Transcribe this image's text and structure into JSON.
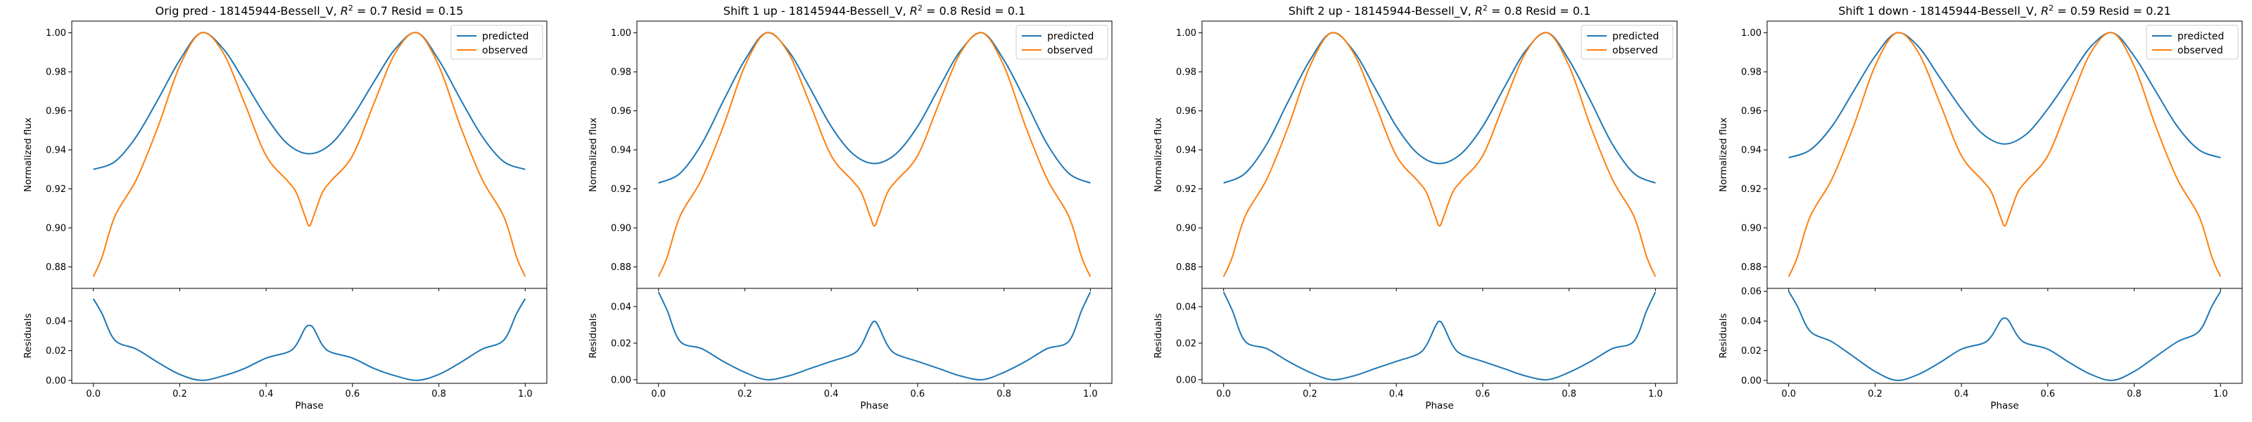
{
  "figure": {
    "xlabel": "Phase",
    "ylabel_top": "Normalized flux",
    "ylabel_bottom": "Residuals",
    "series_names": [
      "predicted",
      "observed"
    ],
    "colors": {
      "predicted": "#1f77b4",
      "observed": "#ff7f0e",
      "residual": "#1f77b4"
    }
  },
  "chart_data": [
    {
      "type": "line",
      "title_prefix": "Orig pred - 18145944-Bessell_V, ",
      "title_r2": "= 0.7",
      "title_resid": " Resid = 0.15",
      "x_ticks": [
        "0.0",
        "0.2",
        "0.4",
        "0.6",
        "0.8",
        "1.0"
      ],
      "flux_ticks": [
        "0.88",
        "0.90",
        "0.92",
        "0.94",
        "0.96",
        "0.98",
        "1.00"
      ],
      "resid_ticks": [
        "0.00",
        "0.02",
        "0.04"
      ],
      "xlim": [
        -0.05,
        1.05
      ],
      "flux_ylim": [
        0.869,
        1.006
      ],
      "resid_ylim": [
        -0.002,
        0.062
      ],
      "series": [
        {
          "name": "predicted",
          "x": [
            0.0,
            0.05,
            0.1,
            0.15,
            0.2,
            0.25,
            0.3,
            0.35,
            0.4,
            0.45,
            0.5,
            0.55,
            0.6,
            0.65,
            0.7,
            0.75,
            0.8,
            0.85,
            0.9,
            0.95,
            1.0
          ],
          "y": [
            0.93,
            0.934,
            0.947,
            0.966,
            0.986,
            1.0,
            0.992,
            0.975,
            0.957,
            0.943,
            0.938,
            0.943,
            0.957,
            0.975,
            0.992,
            1.0,
            0.986,
            0.966,
            0.947,
            0.934,
            0.93
          ]
        },
        {
          "name": "observed",
          "x": [
            0.0,
            0.02,
            0.05,
            0.1,
            0.15,
            0.2,
            0.25,
            0.3,
            0.35,
            0.4,
            0.45,
            0.47,
            0.49,
            0.5,
            0.51,
            0.53,
            0.55,
            0.6,
            0.65,
            0.7,
            0.75,
            0.8,
            0.85,
            0.9,
            0.95,
            0.98,
            1.0
          ],
          "y": [
            0.875,
            0.885,
            0.906,
            0.925,
            0.952,
            0.983,
            1.0,
            0.99,
            0.964,
            0.937,
            0.924,
            0.918,
            0.906,
            0.901,
            0.906,
            0.918,
            0.924,
            0.937,
            0.964,
            0.99,
            1.0,
            0.983,
            0.952,
            0.925,
            0.906,
            0.885,
            0.875
          ]
        }
      ],
      "residuals": {
        "x": [
          0.0,
          0.02,
          0.05,
          0.1,
          0.15,
          0.2,
          0.25,
          0.3,
          0.35,
          0.4,
          0.45,
          0.47,
          0.49,
          0.5,
          0.51,
          0.53,
          0.55,
          0.6,
          0.65,
          0.7,
          0.75,
          0.8,
          0.85,
          0.9,
          0.95,
          0.98,
          1.0
        ],
        "y": [
          0.055,
          0.045,
          0.027,
          0.021,
          0.012,
          0.004,
          0.0,
          0.003,
          0.008,
          0.015,
          0.019,
          0.024,
          0.035,
          0.037,
          0.035,
          0.024,
          0.019,
          0.015,
          0.008,
          0.003,
          0.0,
          0.004,
          0.012,
          0.021,
          0.027,
          0.045,
          0.055
        ]
      }
    },
    {
      "type": "line",
      "title_prefix": "Shift 1 up - 18145944-Bessell_V, ",
      "title_r2": "= 0.8",
      "title_resid": " Resid = 0.1",
      "x_ticks": [
        "0.0",
        "0.2",
        "0.4",
        "0.6",
        "0.8",
        "1.0"
      ],
      "flux_ticks": [
        "0.88",
        "0.90",
        "0.92",
        "0.94",
        "0.96",
        "0.98",
        "1.00"
      ],
      "resid_ticks": [
        "0.00",
        "0.02",
        "0.04"
      ],
      "xlim": [
        -0.05,
        1.05
      ],
      "flux_ylim": [
        0.869,
        1.006
      ],
      "resid_ylim": [
        -0.002,
        0.05
      ],
      "series": [
        {
          "name": "predicted",
          "x": [
            0.0,
            0.05,
            0.1,
            0.15,
            0.2,
            0.25,
            0.3,
            0.35,
            0.4,
            0.45,
            0.5,
            0.55,
            0.6,
            0.65,
            0.7,
            0.75,
            0.8,
            0.85,
            0.9,
            0.95,
            1.0
          ],
          "y": [
            0.923,
            0.928,
            0.943,
            0.965,
            0.986,
            1.0,
            0.991,
            0.972,
            0.952,
            0.938,
            0.933,
            0.938,
            0.952,
            0.972,
            0.991,
            1.0,
            0.986,
            0.965,
            0.943,
            0.928,
            0.923
          ]
        },
        {
          "name": "observed",
          "x": [
            0.0,
            0.02,
            0.05,
            0.1,
            0.15,
            0.2,
            0.25,
            0.3,
            0.35,
            0.4,
            0.45,
            0.47,
            0.49,
            0.5,
            0.51,
            0.53,
            0.55,
            0.6,
            0.65,
            0.7,
            0.75,
            0.8,
            0.85,
            0.9,
            0.95,
            0.98,
            1.0
          ],
          "y": [
            0.875,
            0.885,
            0.906,
            0.925,
            0.952,
            0.983,
            1.0,
            0.99,
            0.964,
            0.937,
            0.924,
            0.918,
            0.906,
            0.901,
            0.906,
            0.918,
            0.924,
            0.937,
            0.964,
            0.99,
            1.0,
            0.983,
            0.952,
            0.925,
            0.906,
            0.885,
            0.875
          ]
        }
      ],
      "residuals": {
        "x": [
          0.0,
          0.02,
          0.05,
          0.1,
          0.15,
          0.2,
          0.25,
          0.3,
          0.35,
          0.4,
          0.45,
          0.47,
          0.49,
          0.5,
          0.51,
          0.53,
          0.55,
          0.6,
          0.65,
          0.7,
          0.75,
          0.8,
          0.85,
          0.9,
          0.95,
          0.98,
          1.0
        ],
        "y": [
          0.048,
          0.038,
          0.021,
          0.017,
          0.01,
          0.004,
          0.0,
          0.002,
          0.006,
          0.01,
          0.014,
          0.019,
          0.029,
          0.032,
          0.029,
          0.019,
          0.014,
          0.01,
          0.006,
          0.002,
          0.0,
          0.004,
          0.01,
          0.017,
          0.021,
          0.038,
          0.048
        ]
      }
    },
    {
      "type": "line",
      "title_prefix": "Shift 2 up - 18145944-Bessell_V, ",
      "title_r2": "= 0.8",
      "title_resid": " Resid = 0.1",
      "x_ticks": [
        "0.0",
        "0.2",
        "0.4",
        "0.6",
        "0.8",
        "1.0"
      ],
      "flux_ticks": [
        "0.88",
        "0.90",
        "0.92",
        "0.94",
        "0.96",
        "0.98",
        "1.00"
      ],
      "resid_ticks": [
        "0.00",
        "0.02",
        "0.04"
      ],
      "xlim": [
        -0.05,
        1.05
      ],
      "flux_ylim": [
        0.869,
        1.006
      ],
      "resid_ylim": [
        -0.002,
        0.05
      ],
      "series": [
        {
          "name": "predicted",
          "x": [
            0.0,
            0.05,
            0.1,
            0.15,
            0.2,
            0.25,
            0.3,
            0.35,
            0.4,
            0.45,
            0.5,
            0.55,
            0.6,
            0.65,
            0.7,
            0.75,
            0.8,
            0.85,
            0.9,
            0.95,
            1.0
          ],
          "y": [
            0.923,
            0.928,
            0.943,
            0.965,
            0.986,
            1.0,
            0.991,
            0.972,
            0.952,
            0.938,
            0.933,
            0.938,
            0.952,
            0.972,
            0.991,
            1.0,
            0.986,
            0.965,
            0.943,
            0.928,
            0.923
          ]
        },
        {
          "name": "observed",
          "x": [
            0.0,
            0.02,
            0.05,
            0.1,
            0.15,
            0.2,
            0.25,
            0.3,
            0.35,
            0.4,
            0.45,
            0.47,
            0.49,
            0.5,
            0.51,
            0.53,
            0.55,
            0.6,
            0.65,
            0.7,
            0.75,
            0.8,
            0.85,
            0.9,
            0.95,
            0.98,
            1.0
          ],
          "y": [
            0.875,
            0.885,
            0.906,
            0.925,
            0.952,
            0.983,
            1.0,
            0.99,
            0.964,
            0.937,
            0.924,
            0.918,
            0.906,
            0.901,
            0.906,
            0.918,
            0.924,
            0.937,
            0.964,
            0.99,
            1.0,
            0.983,
            0.952,
            0.925,
            0.906,
            0.885,
            0.875
          ]
        }
      ],
      "residuals": {
        "x": [
          0.0,
          0.02,
          0.05,
          0.1,
          0.15,
          0.2,
          0.25,
          0.3,
          0.35,
          0.4,
          0.45,
          0.47,
          0.49,
          0.5,
          0.51,
          0.53,
          0.55,
          0.6,
          0.65,
          0.7,
          0.75,
          0.8,
          0.85,
          0.9,
          0.95,
          0.98,
          1.0
        ],
        "y": [
          0.048,
          0.038,
          0.021,
          0.017,
          0.01,
          0.004,
          0.0,
          0.002,
          0.006,
          0.01,
          0.014,
          0.019,
          0.029,
          0.032,
          0.029,
          0.019,
          0.014,
          0.01,
          0.006,
          0.002,
          0.0,
          0.004,
          0.01,
          0.017,
          0.021,
          0.038,
          0.048
        ]
      }
    },
    {
      "type": "line",
      "title_prefix": "Shift 1 down - 18145944-Bessell_V, ",
      "title_r2": "= 0.59",
      "title_resid": " Resid = 0.21",
      "x_ticks": [
        "0.0",
        "0.2",
        "0.4",
        "0.6",
        "0.8",
        "1.0"
      ],
      "flux_ticks": [
        "0.88",
        "0.90",
        "0.92",
        "0.94",
        "0.96",
        "0.98",
        "1.00"
      ],
      "resid_ticks": [
        "0.00",
        "0.02",
        "0.04",
        "0.06"
      ],
      "xlim": [
        -0.05,
        1.05
      ],
      "flux_ylim": [
        0.869,
        1.006
      ],
      "resid_ylim": [
        -0.002,
        0.062
      ],
      "series": [
        {
          "name": "predicted",
          "x": [
            0.0,
            0.05,
            0.1,
            0.15,
            0.2,
            0.25,
            0.3,
            0.35,
            0.4,
            0.45,
            0.5,
            0.55,
            0.6,
            0.65,
            0.7,
            0.75,
            0.8,
            0.85,
            0.9,
            0.95,
            1.0
          ],
          "y": [
            0.936,
            0.94,
            0.952,
            0.97,
            0.988,
            1.0,
            0.993,
            0.977,
            0.961,
            0.948,
            0.943,
            0.948,
            0.961,
            0.977,
            0.993,
            1.0,
            0.988,
            0.97,
            0.952,
            0.94,
            0.936
          ]
        },
        {
          "name": "observed",
          "x": [
            0.0,
            0.02,
            0.05,
            0.1,
            0.15,
            0.2,
            0.25,
            0.3,
            0.35,
            0.4,
            0.45,
            0.47,
            0.49,
            0.5,
            0.51,
            0.53,
            0.55,
            0.6,
            0.65,
            0.7,
            0.75,
            0.8,
            0.85,
            0.9,
            0.95,
            0.98,
            1.0
          ],
          "y": [
            0.875,
            0.885,
            0.906,
            0.925,
            0.952,
            0.983,
            1.0,
            0.99,
            0.964,
            0.937,
            0.924,
            0.918,
            0.906,
            0.901,
            0.906,
            0.918,
            0.924,
            0.937,
            0.964,
            0.99,
            1.0,
            0.983,
            0.952,
            0.925,
            0.906,
            0.885,
            0.875
          ]
        }
      ],
      "residuals": {
        "x": [
          0.0,
          0.02,
          0.05,
          0.1,
          0.15,
          0.2,
          0.25,
          0.3,
          0.35,
          0.4,
          0.45,
          0.47,
          0.49,
          0.5,
          0.51,
          0.53,
          0.55,
          0.6,
          0.65,
          0.7,
          0.75,
          0.8,
          0.85,
          0.9,
          0.95,
          0.98,
          1.0
        ],
        "y": [
          0.06,
          0.05,
          0.033,
          0.026,
          0.016,
          0.006,
          0.0,
          0.004,
          0.012,
          0.021,
          0.025,
          0.03,
          0.04,
          0.042,
          0.04,
          0.03,
          0.025,
          0.021,
          0.012,
          0.004,
          0.0,
          0.006,
          0.016,
          0.026,
          0.033,
          0.05,
          0.06
        ]
      }
    }
  ]
}
